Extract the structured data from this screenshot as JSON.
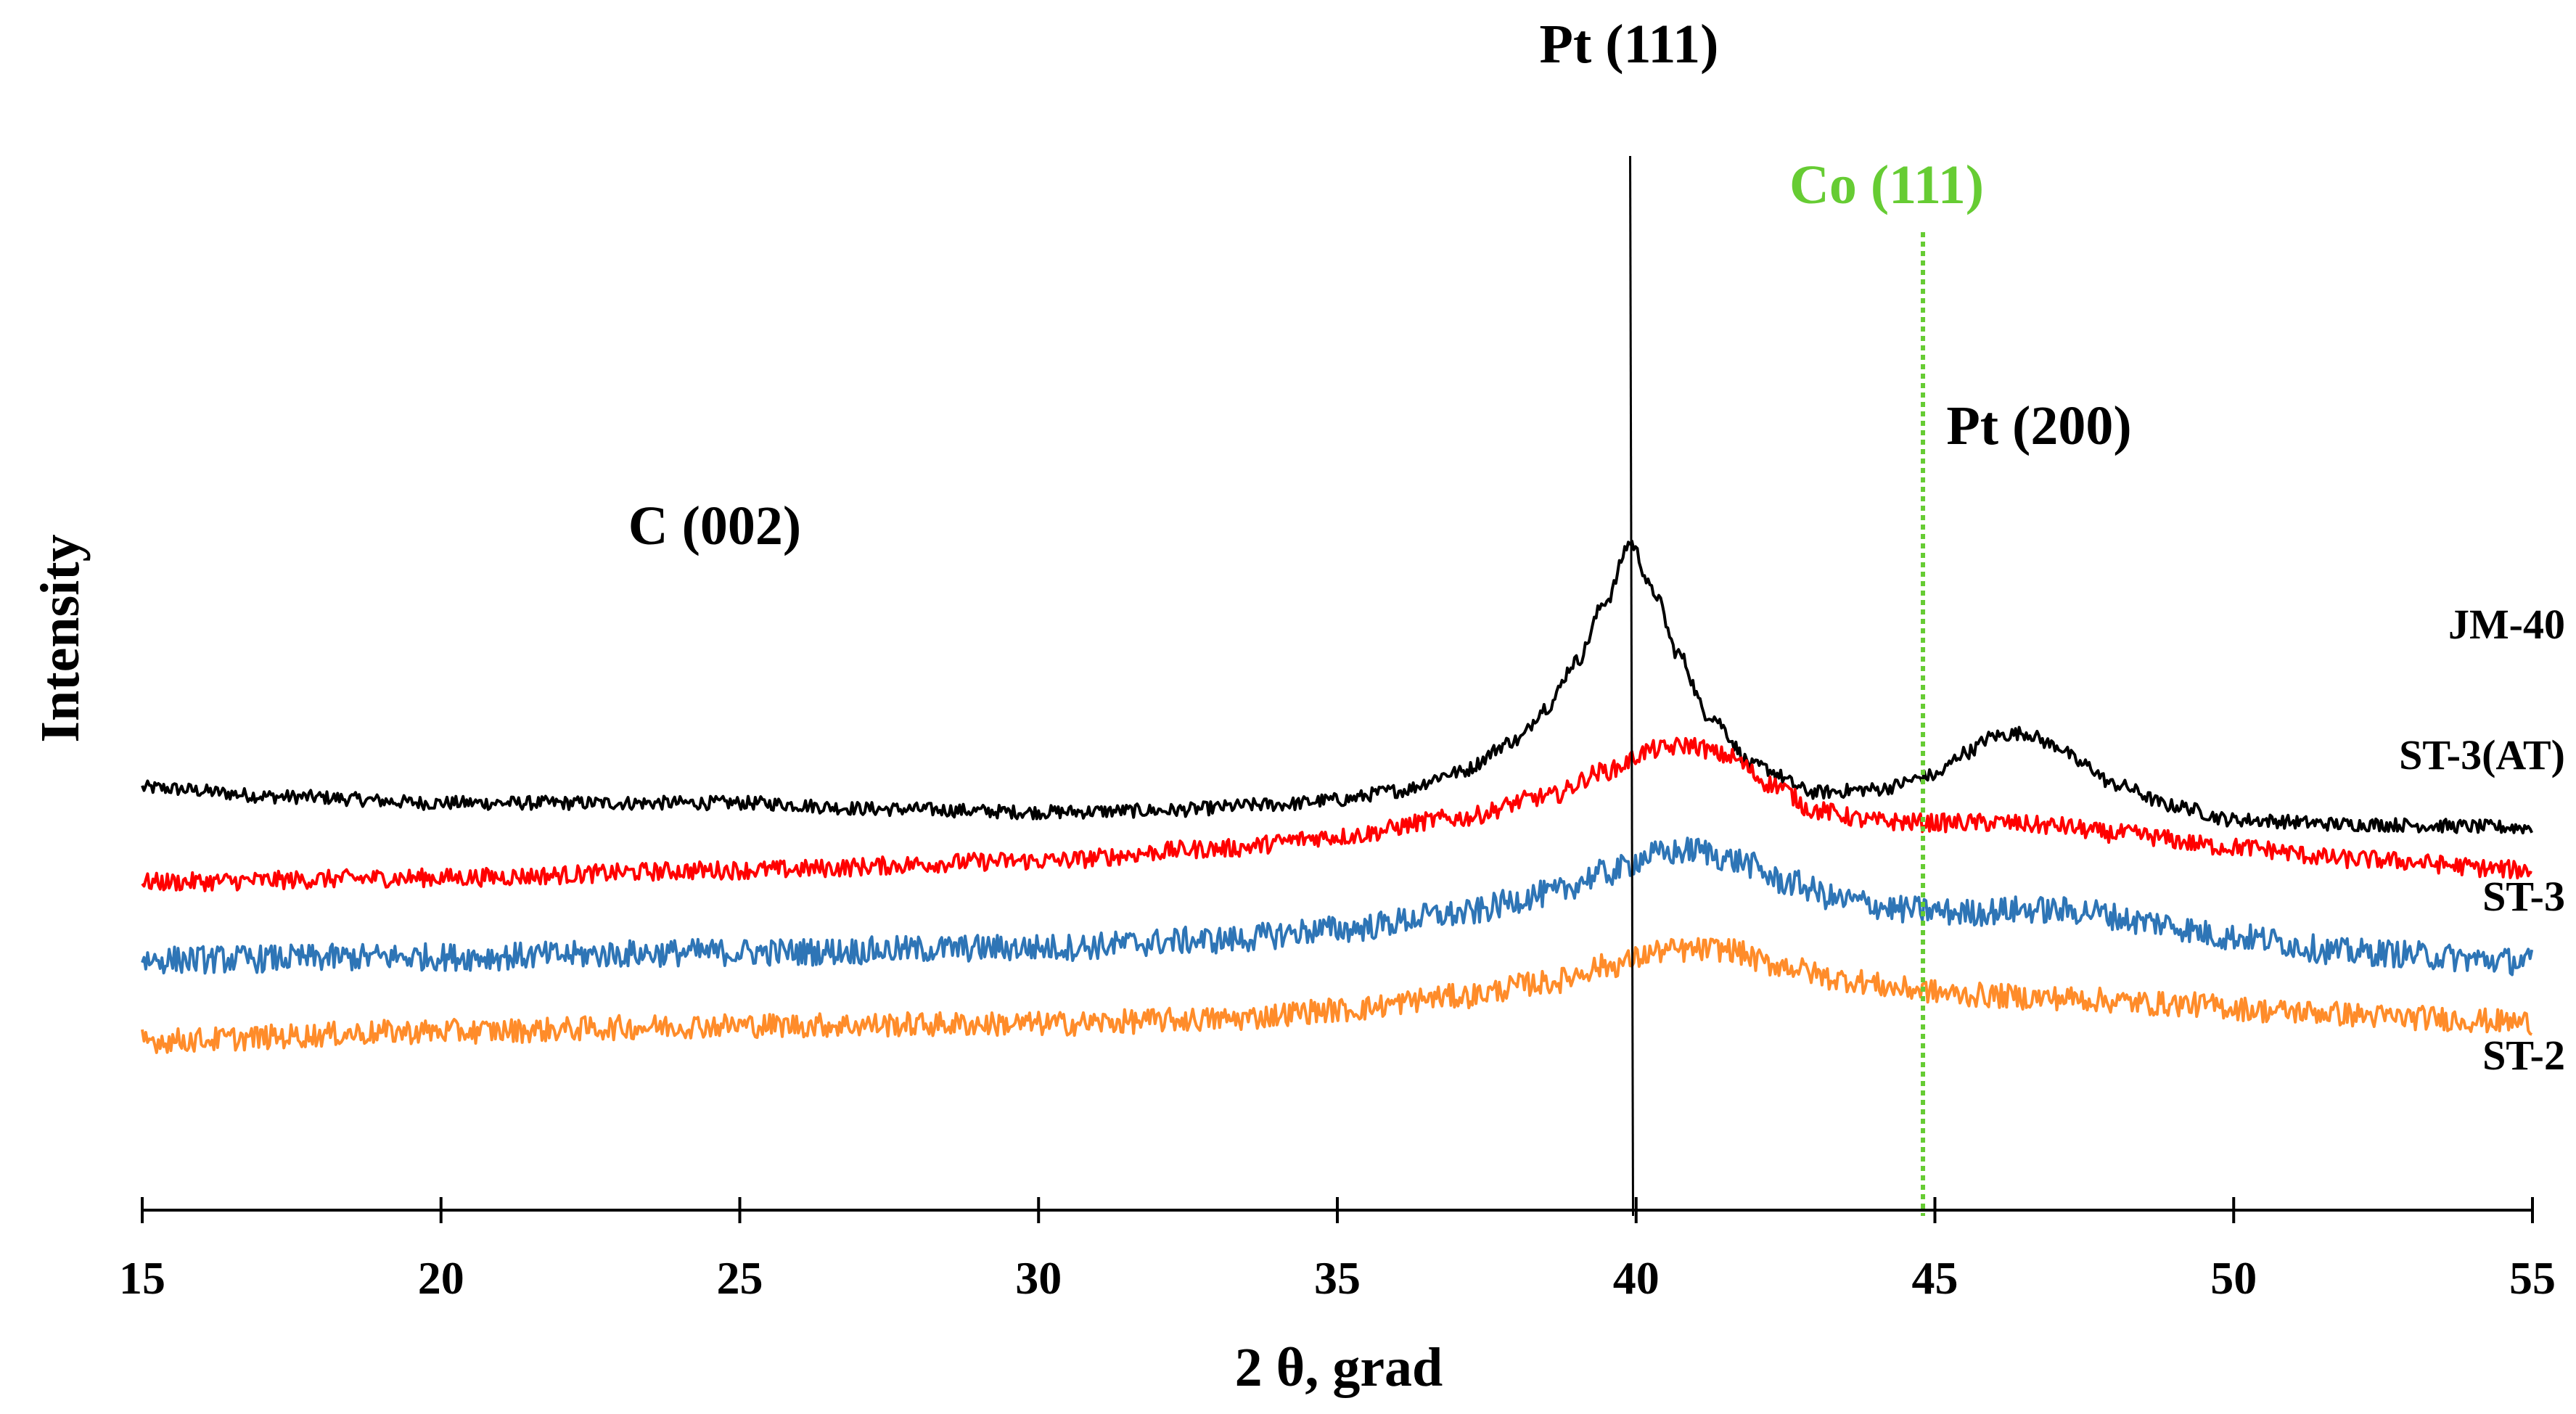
{
  "chart_data": {
    "type": "line",
    "title": "",
    "xlabel": "2 θ,   grad",
    "ylabel": "Intensity",
    "xlim": [
      15,
      55
    ],
    "xticks": [
      15,
      20,
      25,
      30,
      35,
      40,
      45,
      50,
      55
    ],
    "xtick_labels": [
      "15",
      "20",
      "25",
      "30",
      "35",
      "40",
      "45",
      "50",
      "55"
    ],
    "y_units": "arbitrary (curves vertically offset)",
    "grid": false,
    "legend": "labels placed at right end of each curve",
    "annotations": [
      {
        "text": "Pt (111)",
        "x": 39.9,
        "line": "solid",
        "color": "#000000"
      },
      {
        "text": "Co (111)",
        "x": 44.8,
        "line": "dotted",
        "color": "#66cc33"
      },
      {
        "text": "Pt (200)",
        "x": 46.5,
        "color": "#000000"
      },
      {
        "text": "C (002)",
        "x": 24.5,
        "color": "#000000"
      }
    ],
    "series": [
      {
        "name": "JM-40",
        "color": "#000000",
        "x": [
          15,
          17.5,
          20,
          22.5,
          25,
          27.5,
          30,
          32,
          34,
          35,
          36,
          37,
          38,
          38.5,
          39,
          39.5,
          39.9,
          40.3,
          40.7,
          41.2,
          42,
          43,
          44,
          45,
          45.5,
          46,
          46.5,
          47,
          47.5,
          48,
          49,
          50,
          52,
          55
        ],
        "y": [
          102,
          96,
          92,
          92,
          92,
          88,
          86,
          87,
          91,
          94,
          100,
          112,
          133,
          155,
          185,
          225,
          263,
          230,
          190,
          150,
          116,
          99,
          101,
          110,
          125,
          136,
          138,
          130,
          117,
          104,
          90,
          81,
          78,
          76
        ]
      },
      {
        "name": "ST-3(AT)",
        "color": "#ff0000",
        "x": [
          15,
          20,
          25,
          30,
          33,
          35,
          37,
          38.5,
          39.5,
          40.3,
          40.9,
          41.5,
          42.3,
          43,
          44,
          45,
          46,
          47,
          48,
          50,
          52,
          55
        ],
        "y": [
          40,
          43,
          48,
          54,
          62,
          70,
          82,
          96,
          113,
          127,
          130,
          123,
          104,
          87,
          80,
          79,
          79,
          77,
          72,
          63,
          55,
          48
        ]
      },
      {
        "name": "ST-3",
        "color": "#2e75b6",
        "x": [
          15,
          20,
          25,
          30,
          33,
          35,
          37,
          38.5,
          39.5,
          40.3,
          41,
          41.7,
          42.5,
          43.5,
          44.5,
          45.5,
          46.5,
          47.5,
          48.5,
          50,
          52,
          55
        ],
        "y": [
          -11,
          -9,
          -6,
          -3,
          2,
          9,
          19,
          32,
          46,
          58,
          61,
          54,
          40,
          28,
          22,
          20,
          22,
          21,
          14,
          4,
          -6,
          -12
        ]
      },
      {
        "name": "ST-2",
        "color": "#ff8c2a",
        "x": [
          15,
          20,
          25,
          30,
          33,
          35,
          37,
          38.5,
          39.5,
          40.5,
          41.5,
          42.3,
          43.5,
          44.5,
          45.5,
          47,
          49,
          51,
          53,
          55
        ],
        "y": [
          -64,
          -58,
          -54,
          -53,
          -50,
          -44,
          -35,
          -26,
          -15,
          -5,
          -4,
          -14,
          -24,
          -30,
          -34,
          -36,
          -40,
          -45,
          -49,
          -52
        ]
      }
    ]
  }
}
